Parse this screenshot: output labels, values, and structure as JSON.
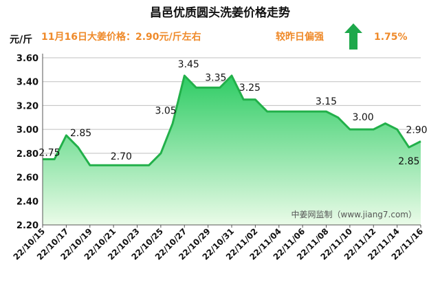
{
  "header": {
    "title": "昌邑优质圆头洗姜价格走势",
    "unit": "元/斤",
    "price_note": "11月16日大姜价格：2.90元/斤左右",
    "trend_label": "较昨日偏强",
    "trend_percent": "1.75%",
    "trend_icon": "up-arrow-icon"
  },
  "watermark": "中姜网监制（www.jiang7.com）",
  "colors": {
    "line": "#22b04a",
    "fill_top": "#2ecc64",
    "fill_bottom": "#eafbe8",
    "accent_orange": "#ef8a2a",
    "arrow": "#1ea84b"
  },
  "chart_data": {
    "type": "area",
    "title": "昌邑优质圆头洗姜价格走势",
    "ylabel": "元/斤",
    "xlabel": "",
    "ylim": [
      2.2,
      3.6
    ],
    "yticks": [
      "2.20",
      "2.40",
      "2.60",
      "2.80",
      "3.00",
      "3.20",
      "3.40",
      "3.60"
    ],
    "x": [
      "22/10/15",
      "22/10/16",
      "22/10/17",
      "22/10/18",
      "22/10/19",
      "22/10/20",
      "22/10/21",
      "22/10/22",
      "22/10/23",
      "22/10/24",
      "22/10/25",
      "22/10/26",
      "22/10/27",
      "22/10/28",
      "22/10/29",
      "22/10/30",
      "22/10/31",
      "22/11/01",
      "22/11/02",
      "22/11/03",
      "22/11/04",
      "22/11/05",
      "22/11/06",
      "22/11/07",
      "22/11/08",
      "22/11/09",
      "22/11/10",
      "22/11/11",
      "22/11/12",
      "22/11/13",
      "22/11/14",
      "22/11/15",
      "22/11/16"
    ],
    "xtick_labels": [
      "22/10/15",
      "22/10/17",
      "22/10/19",
      "22/10/21",
      "22/10/23",
      "22/10/25",
      "22/10/27",
      "22/10/29",
      "22/10/31",
      "22/11/02",
      "22/11/04",
      "22/11/06",
      "22/11/08",
      "22/11/10",
      "22/11/12",
      "22/11/14",
      "22/11/16"
    ],
    "values": [
      2.75,
      2.75,
      2.95,
      2.85,
      2.7,
      2.7,
      2.7,
      2.7,
      2.7,
      2.7,
      2.8,
      3.05,
      3.45,
      3.35,
      3.35,
      3.35,
      3.45,
      3.25,
      3.25,
      3.15,
      3.15,
      3.15,
      3.15,
      3.15,
      3.15,
      3.1,
      3.0,
      3.0,
      3.0,
      3.05,
      3.0,
      2.85,
      2.9
    ],
    "data_labels": [
      {
        "index": 0,
        "text": "2.75"
      },
      {
        "index": 3,
        "text": "2.85"
      },
      {
        "index": 7,
        "text": "2.70"
      },
      {
        "index": 11,
        "text": "3.05"
      },
      {
        "index": 12,
        "text": "3.45"
      },
      {
        "index": 15,
        "text": "3.35"
      },
      {
        "index": 18,
        "text": "3.25"
      },
      {
        "index": 24,
        "text": "3.15"
      },
      {
        "index": 27,
        "text": "3.00"
      },
      {
        "index": 31,
        "text": "2.85"
      },
      {
        "index": 32,
        "text": "2.90"
      }
    ],
    "grid": true,
    "legend": "none"
  }
}
